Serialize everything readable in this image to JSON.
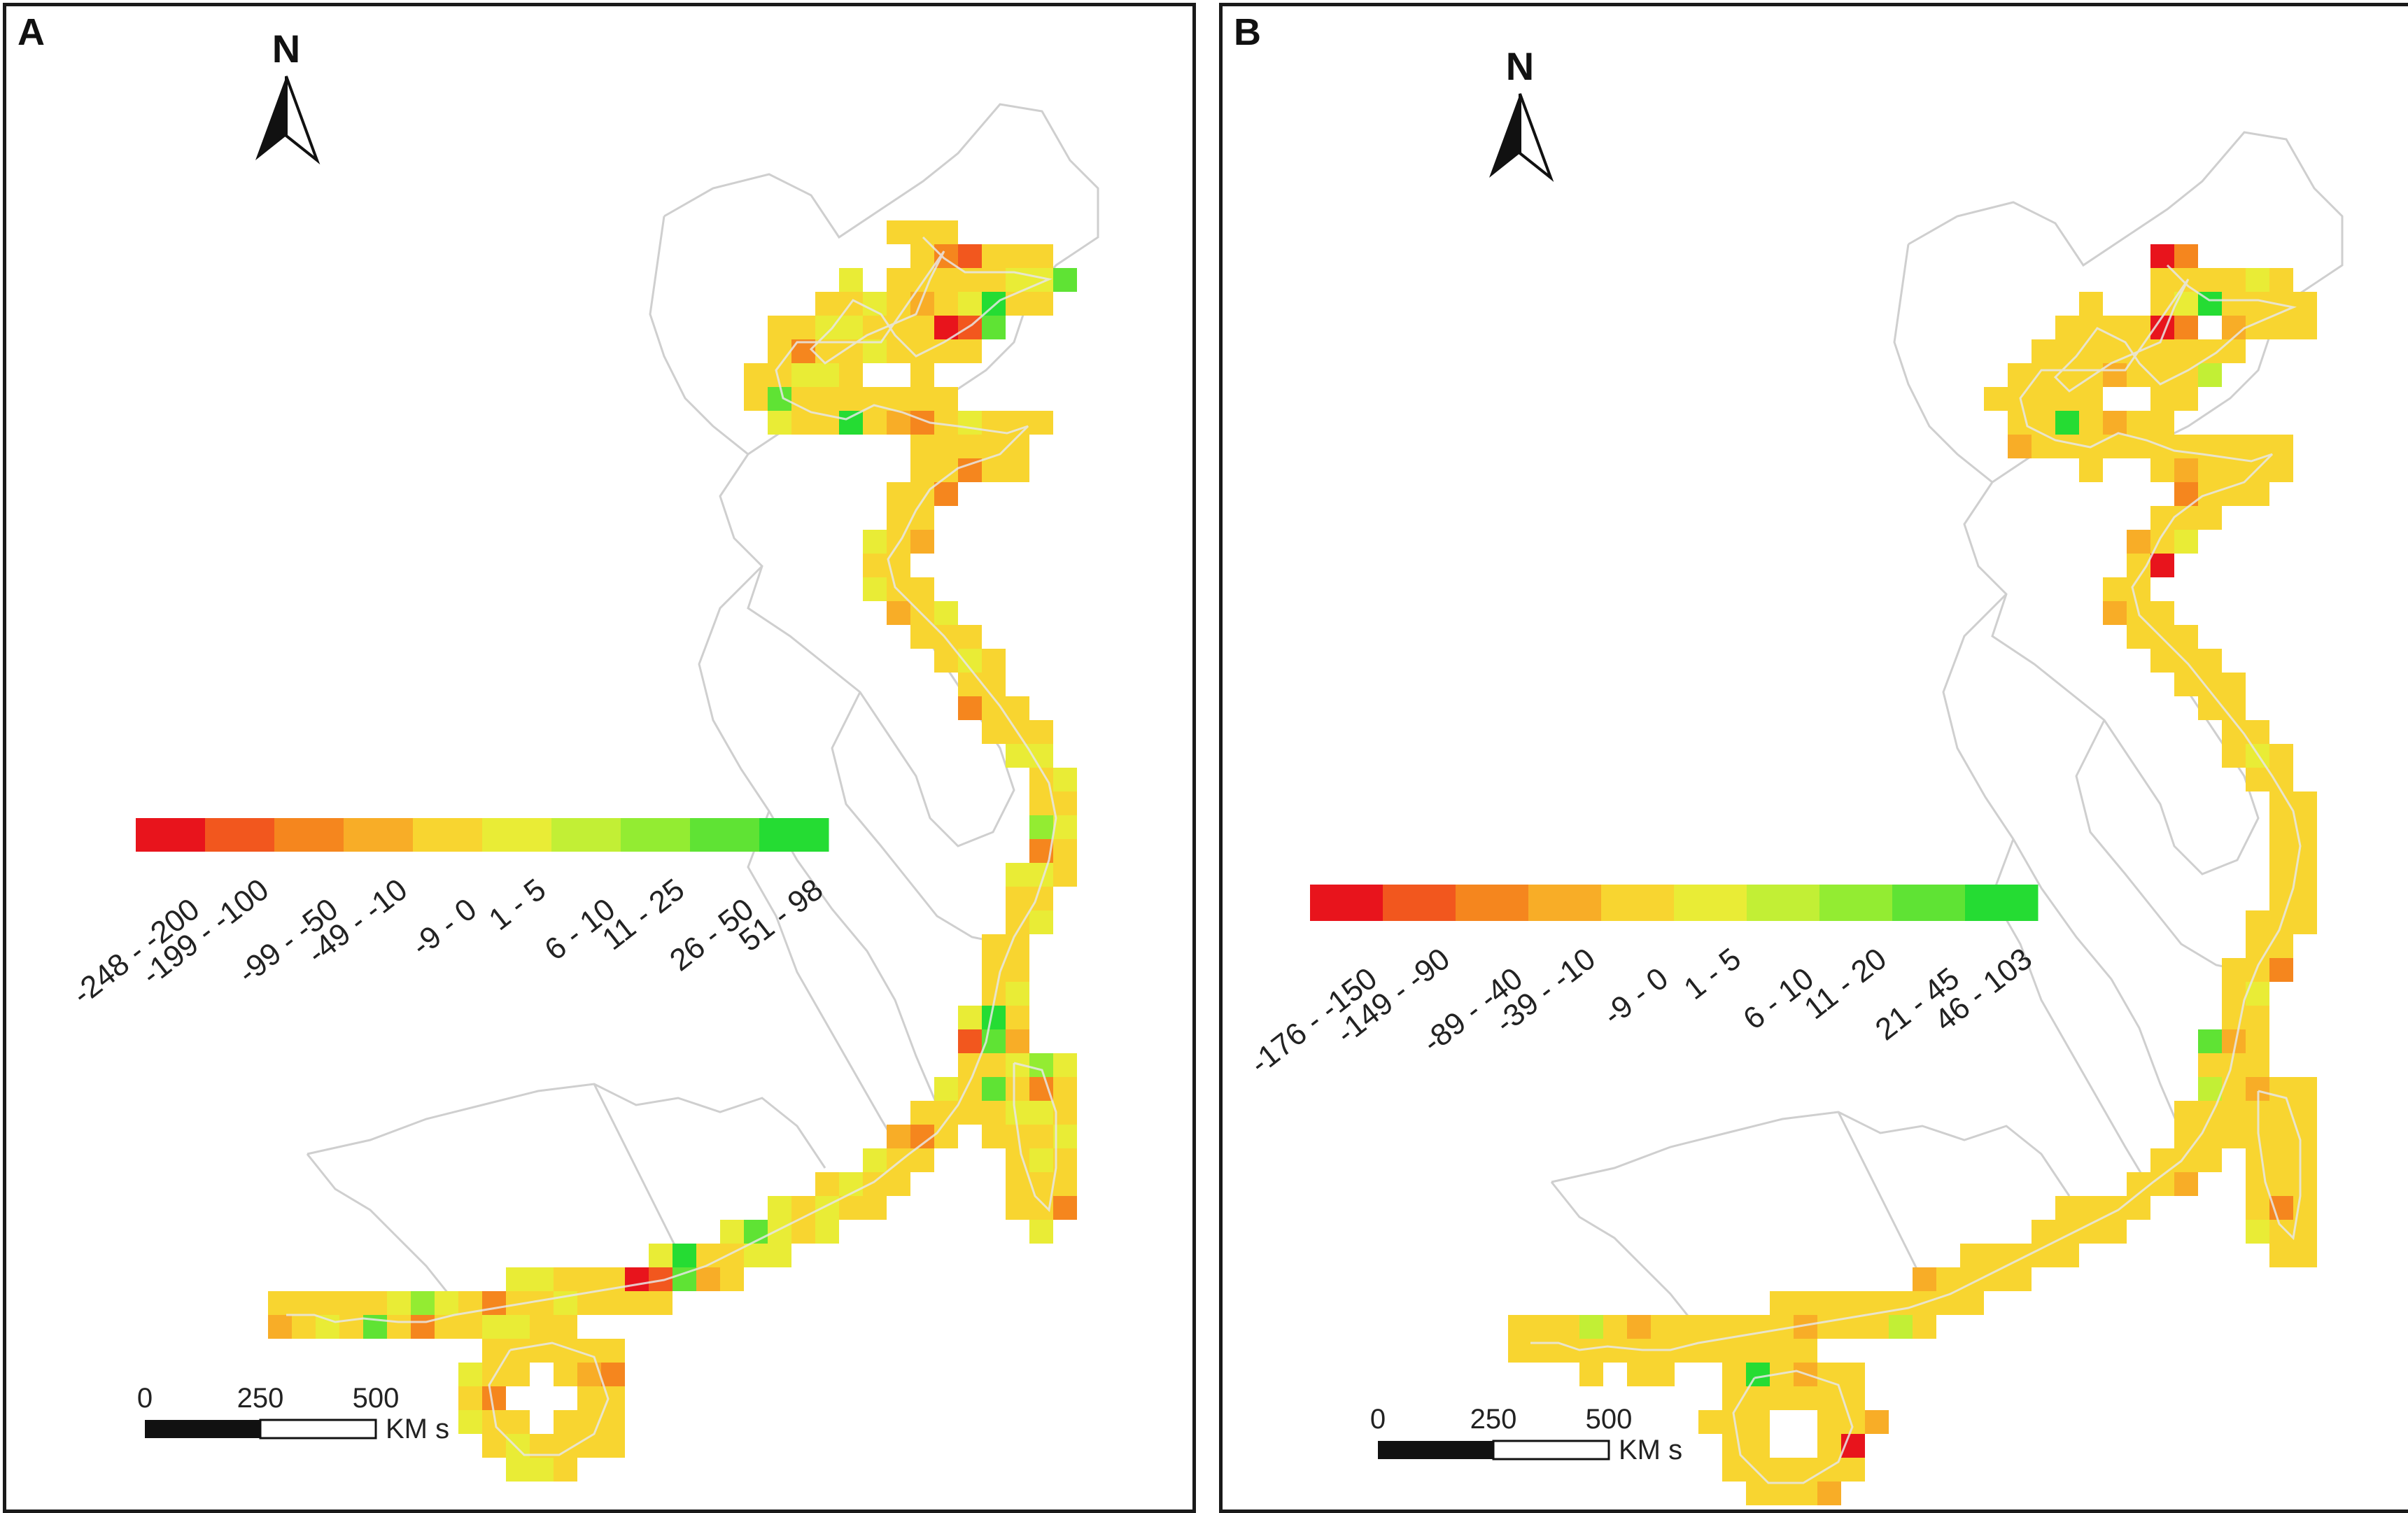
{
  "panels": [
    {
      "id": "a",
      "label": "A",
      "north_label": "N",
      "legend": {
        "colors": [
          "#e8141c",
          "#f2571e",
          "#f5861e",
          "#f8ad27",
          "#f8d530",
          "#e9ec36",
          "#c2ef35",
          "#93ec32",
          "#5fe334",
          "#25dc33"
        ],
        "labels": [
          "-248 - -200",
          "-199 - -100",
          "-99 - -50",
          "-49 - -10",
          "-9 - 0",
          "1 - 5",
          "6 - 10",
          "11 - 25",
          "26 - 50",
          "51 - 98"
        ]
      },
      "scale": {
        "ticks": [
          "0",
          "250",
          "500"
        ],
        "unit": "KM s"
      },
      "cell_classes": [
        [
          2,
          1,
          4,
          4,
          4,
          2,
          5,
          4,
          5,
          4,
          4,
          4,
          4
        ],
        [
          4,
          4,
          4,
          5,
          5,
          8,
          5,
          4,
          5,
          5,
          4,
          4,
          4
        ],
        [
          4,
          5,
          9,
          4,
          4,
          5,
          5,
          4,
          4,
          4,
          5,
          4,
          3
        ],
        [
          0,
          1,
          8,
          3,
          4,
          4,
          4,
          4,
          5,
          5,
          4,
          4,
          4
        ],
        [
          4,
          4,
          4,
          5,
          7,
          5,
          4,
          2,
          4,
          4,
          5,
          4,
          4
        ],
        [
          5,
          4,
          8,
          4,
          2,
          4,
          4,
          5,
          5,
          4,
          4,
          3,
          4
        ],
        [
          4,
          4,
          4,
          5,
          5,
          4,
          8,
          4,
          4,
          4,
          4,
          4,
          4
        ],
        [
          4,
          5,
          4,
          4,
          4,
          5,
          5,
          4,
          4,
          9,
          4,
          3,
          2
        ],
        [
          4,
          4,
          4,
          4,
          5,
          4,
          4,
          2,
          4,
          5,
          5,
          4,
          4
        ],
        [
          4,
          2,
          4,
          4,
          4,
          4,
          5,
          4,
          4,
          5,
          4,
          4,
          4
        ]
      ]
    },
    {
      "id": "b",
      "label": "B",
      "north_label": "N",
      "legend": {
        "colors": [
          "#e8141c",
          "#f2571e",
          "#f5861e",
          "#f8ad27",
          "#f8d530",
          "#e9ec36",
          "#c2ef35",
          "#93ec32",
          "#5fe334",
          "#25dc33"
        ],
        "labels": [
          "-176 - -150",
          "-149 - -90",
          "-89 - -40",
          "-39 - -10",
          "-9 - 0",
          "1 - 5",
          "6 - 10",
          "11 - 20",
          "21 - 45",
          "46 - 103"
        ]
      },
      "scale": {
        "ticks": [
          "0",
          "250",
          "500"
        ],
        "unit": "KM s"
      },
      "cell_classes": [
        [
          0,
          2,
          4,
          4,
          4,
          2,
          4,
          4,
          4,
          4,
          4,
          4,
          4
        ],
        [
          4,
          4,
          4,
          4,
          5,
          4,
          4,
          4,
          4,
          4,
          4,
          4,
          4
        ],
        [
          4,
          5,
          9,
          4,
          4,
          4,
          4,
          4,
          4,
          4,
          4,
          4,
          3
        ],
        [
          0,
          2,
          8,
          3,
          4,
          4,
          4,
          4,
          4,
          4,
          4,
          4,
          4
        ],
        [
          4,
          4,
          4,
          4,
          4,
          4,
          4,
          3,
          4,
          4,
          4,
          4,
          4
        ],
        [
          4,
          4,
          6,
          4,
          3,
          4,
          4,
          4,
          4,
          4,
          4,
          3,
          4
        ],
        [
          4,
          4,
          4,
          4,
          4,
          4,
          4,
          4,
          4,
          4,
          4,
          4,
          4
        ],
        [
          4,
          4,
          4,
          4,
          4,
          4,
          4,
          4,
          4,
          9,
          4,
          3,
          4
        ],
        [
          4,
          4,
          4,
          4,
          4,
          4,
          4,
          3,
          4,
          4,
          4,
          4,
          4
        ],
        [
          4,
          3,
          4,
          4,
          4,
          4,
          4,
          4,
          4,
          4,
          4,
          4,
          4
        ]
      ]
    }
  ]
}
